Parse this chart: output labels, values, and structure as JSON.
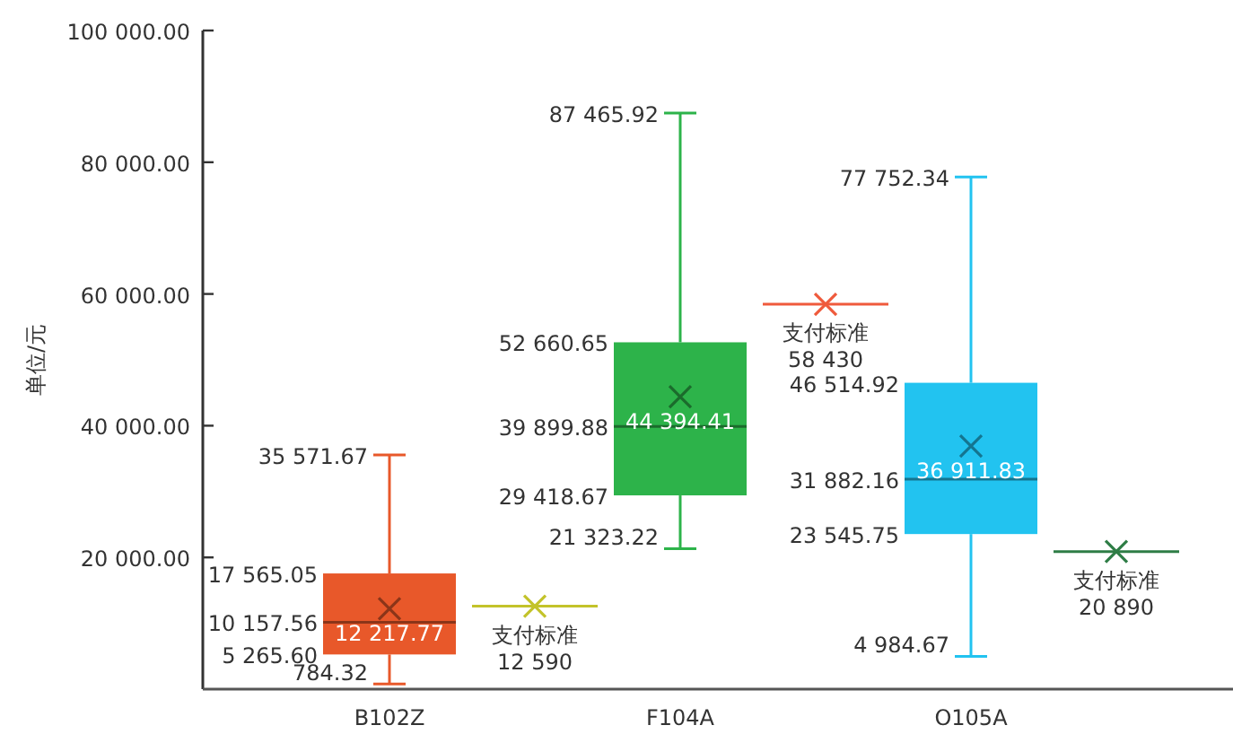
{
  "chart_data": {
    "type": "box",
    "categories": [
      "B102Z",
      null,
      "F104A",
      null,
      "O105A",
      null
    ],
    "ylabel": "单位/元",
    "ylim": [
      0,
      100000
    ],
    "yticks": [
      {
        "value": 20000,
        "label": "20 000.00"
      },
      {
        "value": 40000,
        "label": "40 000.00"
      },
      {
        "value": 60000,
        "label": "60 000.00"
      },
      {
        "value": 80000,
        "label": "80 000.00"
      },
      {
        "value": 100000,
        "label": "100 000.00"
      }
    ],
    "grid": false,
    "legend": false,
    "series": [
      {
        "type": "box",
        "colors": [
          "#e8582a",
          null,
          "#2db34a",
          null,
          "#22c3f0",
          null
        ],
        "value_labels": [
          {
            "low": "784.32",
            "q1": "5 265.60",
            "median": "10 157.56",
            "q3": "17 565.05",
            "high": "35 571.67",
            "mean": "12 217.77"
          },
          null,
          {
            "low": "21 323.22",
            "q1": "29 418.67",
            "median": "39 899.88",
            "q3": "52 660.65",
            "high": "87 465.92",
            "mean": "44 394.41"
          },
          null,
          {
            "low": "4 984.67",
            "q1": "23 545.75",
            "median": "31 882.16",
            "q3": "46 514.92",
            "high": "77 752.34",
            "mean": "36 911.83"
          },
          null
        ],
        "boxes": [
          {
            "low": 784.32,
            "q1": 5265.6,
            "median": 10157.56,
            "q3": 17565.05,
            "high": 35571.67,
            "mean": 12217.77
          },
          null,
          {
            "low": 21323.22,
            "q1": 29418.67,
            "median": 39899.88,
            "q3": 52660.65,
            "high": 87465.92,
            "mean": 44394.41
          },
          null,
          {
            "low": 4984.67,
            "q1": 23545.75,
            "median": 31882.16,
            "q3": 46514.92,
            "high": 77752.34,
            "mean": 36911.83
          },
          null
        ]
      },
      {
        "type": "scatter",
        "name": "支付标准",
        "marker": "cross",
        "values": [
          null,
          12590,
          null,
          58430,
          null,
          20890
        ],
        "colors": [
          null,
          "#c3c32a",
          null,
          "#ef5a3c",
          null,
          "#2e7d46"
        ],
        "value_labels": [
          null,
          "12 590",
          null,
          "58 430",
          null,
          "20 890"
        ]
      }
    ]
  }
}
